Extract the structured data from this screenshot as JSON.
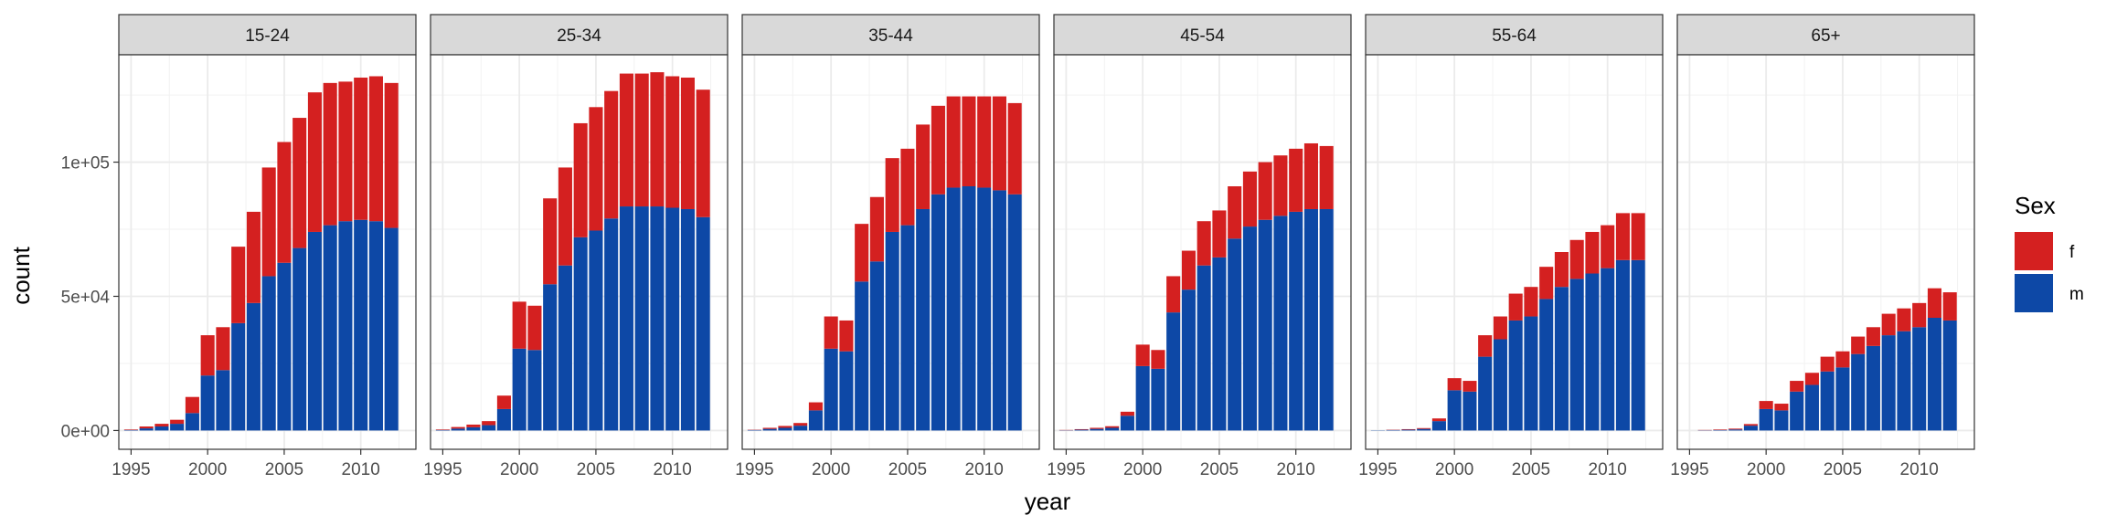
{
  "chart_data": {
    "type": "bar",
    "stacked": true,
    "xlabel": "year",
    "ylabel": "count",
    "xlim": [
      1994.2,
      2013.6
    ],
    "ylim": [
      -7000,
      140000
    ],
    "x_ticks": [
      1995,
      2000,
      2005,
      2010
    ],
    "x_tick_labels": [
      "1995",
      "2000",
      "2005",
      "2010"
    ],
    "y_ticks": [
      0,
      50000,
      100000
    ],
    "y_tick_labels": [
      "0e+00",
      "5e+04",
      "1e+05"
    ],
    "grid": true,
    "legend": {
      "title": "Sex",
      "position": "right",
      "entries": [
        {
          "label": "f",
          "color": "#D42020"
        },
        {
          "label": "m",
          "color": "#0D48A6"
        }
      ]
    },
    "colors": {
      "f": "#D42020",
      "m": "#0D48A6",
      "strip": "#D9D9D9"
    },
    "years": [
      1995,
      1996,
      1997,
      1998,
      1999,
      2000,
      2001,
      2002,
      2003,
      2004,
      2005,
      2006,
      2007,
      2008,
      2009,
      2010,
      2011,
      2012
    ],
    "panels": [
      {
        "label": "15-24",
        "series": [
          {
            "name": "m",
            "values": [
              200,
              800,
              1500,
              2500,
              6500,
              20500,
              22500,
              40000,
              47500,
              57500,
              62500,
              68000,
              74000,
              76500,
              78000,
              78500,
              78000,
              75500
            ]
          },
          {
            "name": "f",
            "values": [
              200,
              700,
              1000,
              1500,
              6000,
              15000,
              16000,
              28500,
              34000,
              40500,
              45000,
              48500,
              52000,
              53000,
              52000,
              53000,
              54000,
              54000
            ]
          }
        ]
      },
      {
        "label": "25-34",
        "series": [
          {
            "name": "m",
            "values": [
              200,
              700,
              1200,
              2000,
              8000,
              30500,
              30000,
              54500,
              61500,
              72000,
              74500,
              79000,
              83500,
              83500,
              83500,
              83000,
              82500,
              79500
            ]
          },
          {
            "name": "f",
            "values": [
              200,
              600,
              1000,
              1500,
              5000,
              17500,
              16500,
              32000,
              36500,
              42500,
              46000,
              47500,
              49500,
              49500,
              50000,
              49000,
              49000,
              47500
            ]
          }
        ]
      },
      {
        "label": "35-44",
        "series": [
          {
            "name": "m",
            "values": [
              200,
              600,
              1000,
              1800,
              7500,
              30500,
              29500,
              55500,
              63000,
              74000,
              76500,
              82500,
              88000,
              90500,
              91000,
              90500,
              89500,
              88000
            ]
          },
          {
            "name": "f",
            "values": [
              100,
              400,
              700,
              1000,
              3000,
              12000,
              11500,
              21500,
              24000,
              27500,
              28500,
              31500,
              33000,
              34000,
              33500,
              34000,
              35000,
              34000
            ]
          }
        ]
      },
      {
        "label": "45-54",
        "series": [
          {
            "name": "m",
            "values": [
              100,
              300,
              600,
              1000,
              5500,
              24000,
              23000,
              44000,
              52500,
              61500,
              64500,
              71500,
              76000,
              78500,
              80000,
              81500,
              82500,
              82500
            ]
          },
          {
            "name": "f",
            "values": [
              100,
              200,
              400,
              600,
              1500,
              8000,
              7000,
              13500,
              14500,
              16500,
              17500,
              19500,
              20500,
              21500,
              22500,
              23500,
              24500,
              23500
            ]
          }
        ]
      },
      {
        "label": "55-64",
        "series": [
          {
            "name": "m",
            "values": [
              100,
              200,
              300,
              600,
              3500,
              15000,
              14500,
              27500,
              34000,
              41000,
              42500,
              49000,
              53500,
              56500,
              58500,
              60500,
              63500,
              63500
            ]
          },
          {
            "name": "f",
            "values": [
              0,
              100,
              200,
              300,
              1000,
              4500,
              4000,
              8000,
              8500,
              10000,
              11000,
              12000,
              13000,
              14500,
              15500,
              16000,
              17500,
              17500
            ]
          }
        ]
      },
      {
        "label": "65+",
        "series": [
          {
            "name": "m",
            "values": [
              0,
              100,
              200,
              400,
              1800,
              8000,
              7500,
              14500,
              17000,
              22000,
              23500,
              28500,
              31500,
              35500,
              37000,
              38500,
              42000,
              41000
            ]
          },
          {
            "name": "f",
            "values": [
              0,
              100,
              200,
              300,
              600,
              3000,
              2500,
              4000,
              4500,
              5500,
              6000,
              6500,
              7000,
              8000,
              8500,
              9000,
              11000,
              10500
            ]
          }
        ]
      }
    ]
  }
}
